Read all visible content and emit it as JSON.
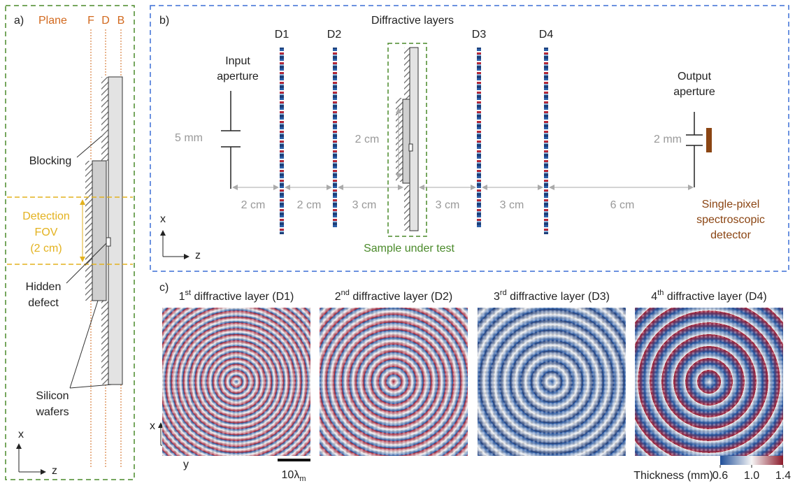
{
  "panel_a": {
    "label": "a)",
    "plane": "Plane",
    "planes": [
      "F",
      "D",
      "B"
    ],
    "blocking": "Blocking",
    "detection_fov": [
      "Detection",
      "FOV",
      "(2 cm)"
    ],
    "hidden_defect": [
      "Hidden",
      "defect"
    ],
    "silicon_wafers": [
      "Silicon",
      "wafers"
    ],
    "axis_x": "x",
    "axis_z": "z"
  },
  "panel_b": {
    "label": "b)",
    "title": "Diffractive layers",
    "layers": [
      "D1",
      "D2",
      "D3",
      "D4"
    ],
    "input_aperture": [
      "Input",
      "aperture"
    ],
    "output_aperture": [
      "Output",
      "aperture"
    ],
    "input_size": "5 mm",
    "output_size": "2 mm",
    "sample_size": "2 cm",
    "distances": [
      "2 cm",
      "2 cm",
      "3 cm",
      "3 cm",
      "3 cm",
      "6 cm"
    ],
    "sample": "Sample under test",
    "detector": [
      "Single-pixel",
      "spectroscopic",
      "detector"
    ],
    "axis_x": "x",
    "axis_z": "z"
  },
  "panel_c": {
    "label": "c)",
    "titles": [
      {
        "ord": "1",
        "sup": "st",
        "text": " diffractive layer (D1)"
      },
      {
        "ord": "2",
        "sup": "nd",
        "text": " diffractive layer (D2)"
      },
      {
        "ord": "3",
        "sup": "rd",
        "text": " diffractive layer (D3)"
      },
      {
        "ord": "4",
        "sup": "th",
        "text": " diffractive layer (D4)"
      }
    ],
    "axis_x": "x",
    "axis_y": "y",
    "scale_bar": {
      "main": "10λ",
      "sub": "m"
    },
    "colorbar": {
      "label": "Thickness (mm)",
      "lim": [
        0.6,
        1.4
      ],
      "ticks": [
        0.6,
        {
          "value": 1,
          "label": "1.0"
        },
        1.4
      ]
    }
  }
}
